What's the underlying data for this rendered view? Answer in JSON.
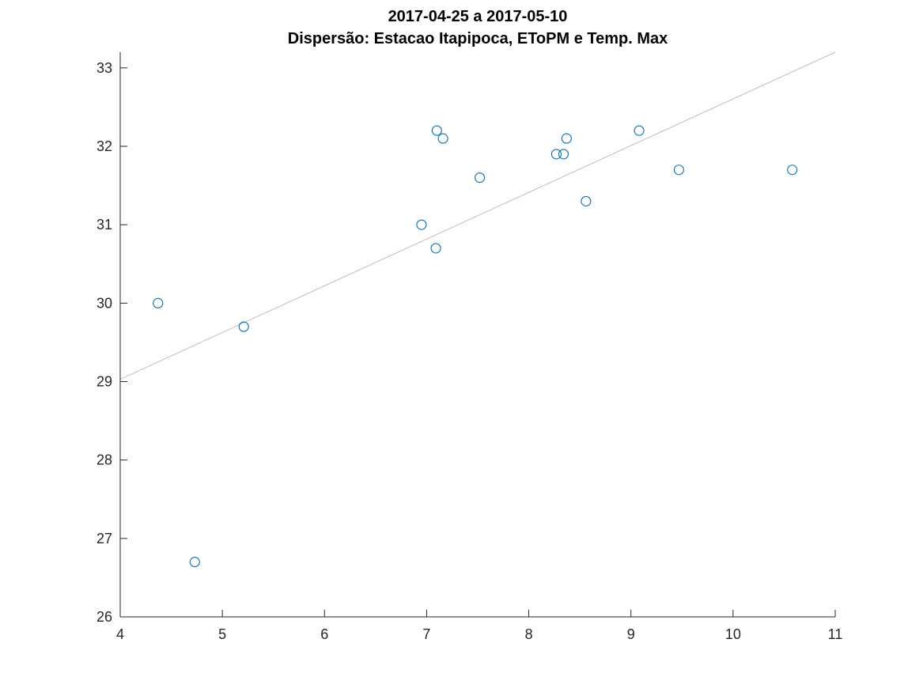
{
  "chart_data": {
    "type": "scatter",
    "title": "2017-04-25 a 2017-05-10",
    "subtitle": "Dispersão: Estacao Itapipoca, EToPM e Temp. Max",
    "xlabel": "",
    "ylabel": "",
    "xlim": [
      4,
      11
    ],
    "ylim": [
      26,
      33.2
    ],
    "xticks": [
      "4",
      "5",
      "6",
      "7",
      "8",
      "9",
      "10",
      "11"
    ],
    "yticks": [
      "26",
      "27",
      "28",
      "29",
      "30",
      "31",
      "32",
      "33"
    ],
    "grid": false,
    "marker_color": "#0072bd",
    "fit_line_color": "#bdbdbd",
    "series": [
      {
        "x": [
          4.37,
          4.73,
          5.21,
          6.95,
          7.09,
          7.1,
          7.16,
          7.52,
          8.27,
          8.34,
          8.37,
          8.56,
          9.08,
          9.47,
          10.58
        ],
        "y": [
          30.0,
          26.7,
          29.7,
          31.0,
          30.7,
          32.2,
          32.1,
          31.6,
          31.9,
          31.9,
          32.1,
          31.3,
          32.2,
          31.7,
          31.7
        ]
      }
    ],
    "fit_line": {
      "x": [
        4,
        11
      ],
      "y": [
        29.03,
        33.2
      ]
    }
  }
}
